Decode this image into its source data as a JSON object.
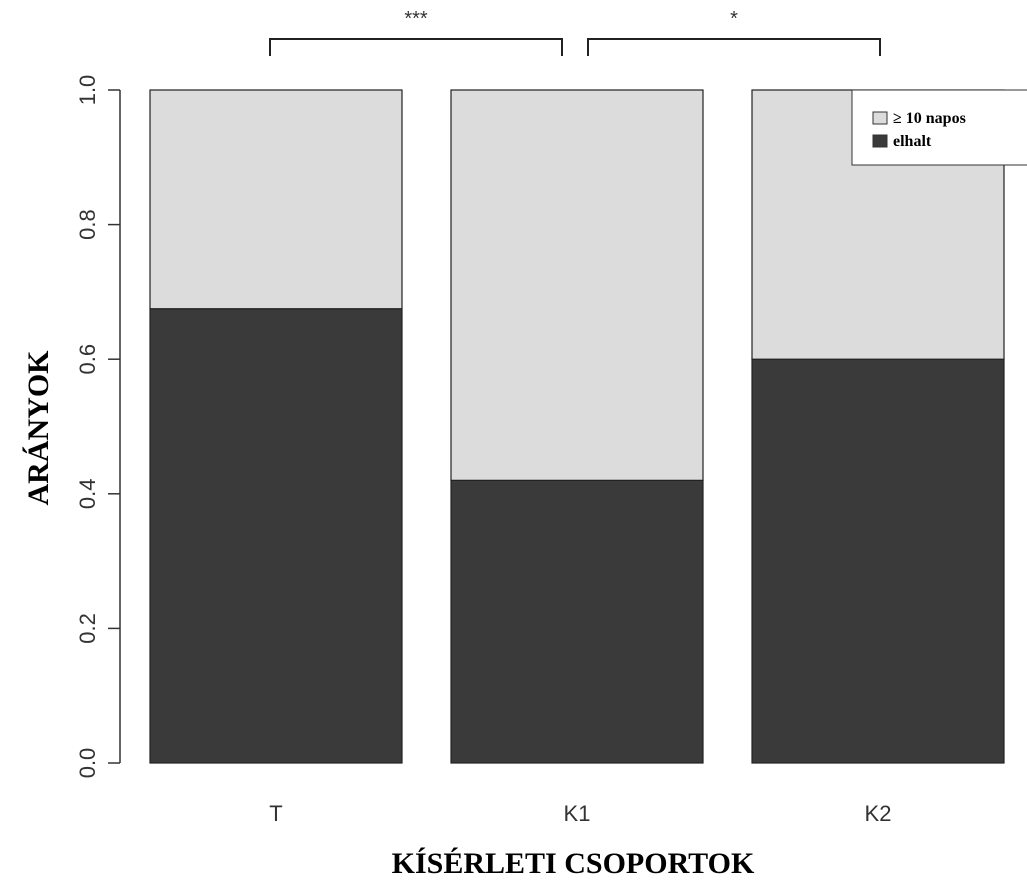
{
  "chart_data": {
    "type": "bar",
    "stacked": true,
    "categories": [
      "T",
      "K1",
      "K2"
    ],
    "series": [
      {
        "name": "elhalt",
        "values": [
          0.675,
          0.42,
          0.6
        ],
        "color": "#3a3a3a"
      },
      {
        "name": "≥ 10 napos",
        "values": [
          0.325,
          0.58,
          0.4
        ],
        "color": "#dcdcdc"
      }
    ],
    "xlabel": "KÍSÉRLETI CSOPORTOK",
    "ylabel": "ARÁNYOK",
    "ylim": [
      0,
      1.0
    ],
    "yticks": [
      "0.0",
      "0.2",
      "0.4",
      "0.6",
      "0.8",
      "1.0"
    ],
    "legend": {
      "placement": "top-right",
      "entries": [
        {
          "label": "≥ 10 napos",
          "color": "#dcdcdc"
        },
        {
          "label": "elhalt",
          "color": "#3a3a3a"
        }
      ]
    },
    "significance": [
      {
        "from": "T",
        "to": "K1",
        "label": "***"
      },
      {
        "from": "K1",
        "to": "K2",
        "label": "*"
      }
    ],
    "grid": false
  }
}
